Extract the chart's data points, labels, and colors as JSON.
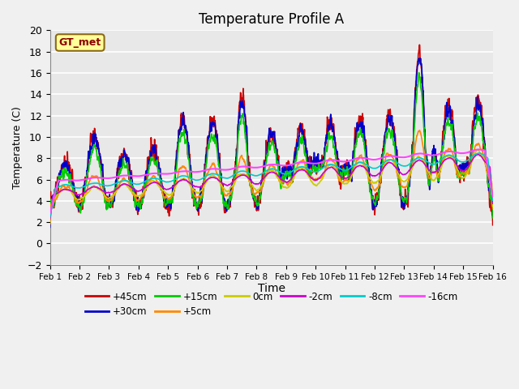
{
  "title": "Temperature Profile A",
  "xlabel": "Time",
  "ylabel": "Temperature (C)",
  "ylim": [
    -2,
    20
  ],
  "yticks": [
    -2,
    0,
    2,
    4,
    6,
    8,
    10,
    12,
    14,
    16,
    18,
    20
  ],
  "xtick_labels": [
    "Feb 1",
    "Feb 2",
    "Feb 3",
    "Feb 4",
    "Feb 5",
    "Feb 6",
    "Feb 7",
    "Feb 8",
    "Feb 9",
    "Feb 10",
    "Feb 11",
    "Feb 12",
    "Feb 13",
    "Feb 14",
    "Feb 15",
    "Feb 16"
  ],
  "annotation": "GT_met",
  "annotation_color": "#8B0000",
  "annotation_bg": "#FFFF99",
  "annotation_border": "#8B6914",
  "series": {
    "+45cm": {
      "color": "#CC0000",
      "lw": 1.2
    },
    "+30cm": {
      "color": "#0000CC",
      "lw": 1.2
    },
    "+15cm": {
      "color": "#00CC00",
      "lw": 1.2
    },
    "+5cm": {
      "color": "#FF8800",
      "lw": 1.2
    },
    "0cm": {
      "color": "#CCCC00",
      "lw": 1.2
    },
    "-2cm": {
      "color": "#CC00CC",
      "lw": 1.2
    },
    "-8cm": {
      "color": "#00CCCC",
      "lw": 1.2
    },
    "-16cm": {
      "color": "#FF44FF",
      "lw": 1.5
    }
  },
  "legend_order": [
    "+45cm",
    "+30cm",
    "+15cm",
    "+5cm",
    "0cm",
    "-2cm",
    "-8cm",
    "-16cm"
  ],
  "bg_color": "#E8E8E8",
  "grid_color": "#FFFFFF",
  "plot_bg": "#E8E8E8",
  "figsize": [
    6.4,
    4.8
  ],
  "dpi": 100
}
